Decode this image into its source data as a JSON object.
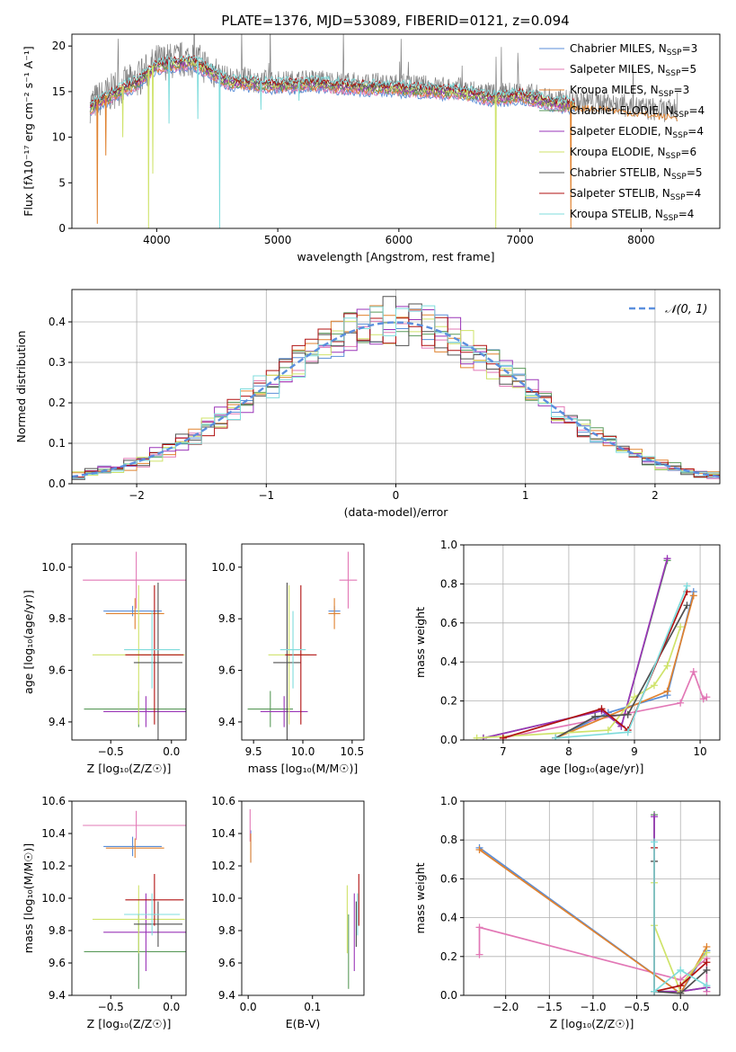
{
  "figure_title": "PLATE=1376, MJD=53089, FIBERID=0121, z=0.094",
  "series_colors": [
    "#5a8ed8",
    "#e278b6",
    "#e0822f",
    "#5a9a5a",
    "#9a35b8",
    "#cfe36a",
    "#505050",
    "#b01010",
    "#7fdcdc"
  ],
  "models": [
    {
      "name": "Chabrier MILES",
      "nssp": 3
    },
    {
      "name": "Salpeter MILES",
      "nssp": 5
    },
    {
      "name": "Kroupa MILES",
      "nssp": 3
    },
    {
      "name": "Chabrier ELODIE",
      "nssp": 4
    },
    {
      "name": "Salpeter ELODIE",
      "nssp": 4
    },
    {
      "name": "Kroupa ELODIE",
      "nssp": 6
    },
    {
      "name": "Chabrier STELIB",
      "nssp": 5
    },
    {
      "name": "Salpeter STELIB",
      "nssp": 4
    },
    {
      "name": "Kroupa STELIB",
      "nssp": 4
    }
  ],
  "chart_data": [
    {
      "id": "spectrum",
      "type": "line",
      "xlabel": "wavelength [Angstrom, rest frame]",
      "ylabel": "Flux [fλ10⁻¹⁷ erg cm⁻² s⁻¹ A⁻¹]",
      "xlim": [
        3300,
        8650
      ],
      "ylim": [
        0,
        21.3
      ],
      "xticks": [
        4000,
        5000,
        6000,
        7000,
        8000
      ],
      "yticks": [
        0,
        5,
        10,
        15,
        20
      ],
      "legend_position": "upper right",
      "data_series": {
        "name": "",
        "color": "#808080",
        "continuum": [
          [
            3450,
            13.6
          ],
          [
            3700,
            15.5
          ],
          [
            3850,
            16.4
          ],
          [
            4000,
            18.2
          ],
          [
            4300,
            18.6
          ],
          [
            4600,
            16.4
          ],
          [
            5000,
            16.0
          ],
          [
            5300,
            16.2
          ],
          [
            5600,
            15.9
          ],
          [
            6000,
            15.7
          ],
          [
            6500,
            15.3
          ],
          [
            6800,
            14.6
          ],
          [
            7000,
            14.9
          ],
          [
            7300,
            14.0
          ],
          [
            7700,
            13.8
          ],
          [
            8000,
            13.2
          ],
          [
            8300,
            12.8
          ]
        ]
      },
      "model_absorption_features": [
        [
          3510,
          0.5
        ],
        [
          3580,
          8.0
        ],
        [
          3720,
          10.0
        ],
        [
          3933,
          0.0
        ],
        [
          3968,
          6.0
        ],
        [
          4102,
          11.5
        ],
        [
          4340,
          12.0
        ],
        [
          4520,
          0.0
        ],
        [
          4861,
          13.0
        ],
        [
          5175,
          14.0
        ],
        [
          6563,
          14.0
        ],
        [
          6800,
          0.0
        ],
        [
          7420,
          0.0
        ]
      ]
    },
    {
      "id": "residuals",
      "type": "histogram",
      "xlabel": "(data-model)/error",
      "ylabel": "Normed distribution",
      "xlim": [
        -2.5,
        2.5
      ],
      "ylim": [
        0,
        0.48
      ],
      "xticks": [
        -2,
        -1,
        0,
        1,
        2
      ],
      "yticks": [
        0.0,
        0.1,
        0.2,
        0.3,
        0.4
      ],
      "grid": true,
      "legend": "𝒩(0, 1)",
      "legend_position": "upper right",
      "reference_curve": {
        "type": "gaussian",
        "mean": 0,
        "sigma": 1,
        "color": "#5b8fde"
      }
    },
    {
      "id": "z_age",
      "type": "scatter",
      "xlabel": "Z [log₁₀(Z/Z☉)]",
      "ylabel": "age  [log₁₀(age/yr)]",
      "xlim": [
        -0.82,
        0.12
      ],
      "ylim": [
        9.33,
        10.09
      ],
      "xticks": [
        -0.5,
        0.0
      ],
      "yticks": [
        9.4,
        9.6,
        9.8,
        10.0
      ],
      "points": [
        {
          "series": 0,
          "x": -0.32,
          "y": 9.83,
          "xerr": 0.24,
          "yerr": 0.02
        },
        {
          "series": 1,
          "x": -0.29,
          "y": 9.95,
          "xerr": 0.44,
          "yerr": 0.11
        },
        {
          "series": 2,
          "x": -0.3,
          "y": 9.82,
          "xerr": 0.24,
          "yerr": 0.06
        },
        {
          "series": 3,
          "x": -0.27,
          "y": 9.45,
          "xerr": 0.45,
          "yerr": 0.07
        },
        {
          "series": 4,
          "x": -0.21,
          "y": 9.44,
          "xerr": 0.35,
          "yerr": 0.06
        },
        {
          "series": 5,
          "x": -0.27,
          "y": 9.66,
          "xerr": 0.38,
          "yerr": 0.27
        },
        {
          "series": 6,
          "x": -0.11,
          "y": 9.63,
          "xerr": 0.2,
          "yerr": 0.31
        },
        {
          "series": 7,
          "x": -0.14,
          "y": 9.66,
          "xerr": 0.24,
          "yerr": 0.27
        },
        {
          "series": 8,
          "x": -0.16,
          "y": 9.68,
          "xerr": 0.23,
          "yerr": 0.15
        }
      ]
    },
    {
      "id": "mass_age",
      "type": "scatter",
      "xlabel": "mass [log₁₀(M/M☉)]",
      "ylabel": "",
      "xlim": [
        9.38,
        10.62
      ],
      "ylim": [
        9.33,
        10.09
      ],
      "xticks": [
        9.5,
        10.0,
        10.5
      ],
      "yticks": [
        9.4,
        9.6,
        9.8,
        10.0
      ],
      "points": [
        {
          "series": 0,
          "x": 10.32,
          "y": 9.83,
          "xerr": 0.06,
          "yerr": 0.02
        },
        {
          "series": 1,
          "x": 10.46,
          "y": 9.95,
          "xerr": 0.09,
          "yerr": 0.11
        },
        {
          "series": 2,
          "x": 10.32,
          "y": 9.82,
          "xerr": 0.06,
          "yerr": 0.06
        },
        {
          "series": 3,
          "x": 9.67,
          "y": 9.45,
          "xerr": 0.23,
          "yerr": 0.07
        },
        {
          "series": 4,
          "x": 9.81,
          "y": 9.44,
          "xerr": 0.24,
          "yerr": 0.06
        },
        {
          "series": 5,
          "x": 9.86,
          "y": 9.66,
          "xerr": 0.21,
          "yerr": 0.27
        },
        {
          "series": 6,
          "x": 9.84,
          "y": 9.63,
          "xerr": 0.14,
          "yerr": 0.31
        },
        {
          "series": 7,
          "x": 9.98,
          "y": 9.66,
          "xerr": 0.16,
          "yerr": 0.27
        },
        {
          "series": 8,
          "x": 9.9,
          "y": 9.68,
          "xerr": 0.13,
          "yerr": 0.15
        }
      ]
    },
    {
      "id": "age_weight",
      "type": "line",
      "xlabel": "age  [log₁₀(age/yr)]",
      "ylabel": "mass weight",
      "xlim": [
        6.4,
        10.3
      ],
      "ylim": [
        0,
        1.0
      ],
      "xticks": [
        7,
        8,
        9,
        10
      ],
      "yticks": [
        0.0,
        0.2,
        0.4,
        0.6,
        0.8,
        1.0
      ],
      "grid": true,
      "series": [
        {
          "series": 0,
          "x": [
            7.8,
            8.6,
            9.5,
            9.9
          ],
          "y": [
            0.01,
            0.14,
            0.23,
            0.76
          ]
        },
        {
          "series": 1,
          "x": [
            7.0,
            9.7,
            9.9,
            10.05,
            10.1
          ],
          "y": [
            0.01,
            0.19,
            0.35,
            0.21,
            0.22
          ]
        },
        {
          "series": 2,
          "x": [
            7.8,
            9.5,
            9.9
          ],
          "y": [
            0.01,
            0.25,
            0.74
          ]
        },
        {
          "series": 3,
          "x": [
            6.7,
            8.5,
            8.8,
            9.5
          ],
          "y": [
            0.01,
            0.15,
            0.07,
            0.92
          ]
        },
        {
          "series": 4,
          "x": [
            6.7,
            8.5,
            8.8,
            9.5
          ],
          "y": [
            0.01,
            0.15,
            0.07,
            0.93
          ]
        },
        {
          "series": 5,
          "x": [
            6.6,
            8.6,
            9.0,
            9.3,
            9.5,
            9.7
          ],
          "y": [
            0.01,
            0.05,
            0.22,
            0.28,
            0.38,
            0.58
          ]
        },
        {
          "series": 6,
          "x": [
            7.8,
            8.4,
            8.9,
            9.8
          ],
          "y": [
            0.01,
            0.12,
            0.13,
            0.69
          ]
        },
        {
          "series": 7,
          "x": [
            7.0,
            8.5,
            8.9,
            9.8
          ],
          "y": [
            0.01,
            0.16,
            0.05,
            0.76
          ]
        },
        {
          "series": 8,
          "x": [
            7.8,
            8.9,
            9.8
          ],
          "y": [
            0.01,
            0.04,
            0.79
          ]
        }
      ]
    },
    {
      "id": "z_mass",
      "type": "scatter",
      "xlabel": "Z [log₁₀(Z/Z☉)]",
      "ylabel": "mass [log₁₀(M/M☉)]",
      "xlim": [
        -0.82,
        0.12
      ],
      "ylim": [
        9.4,
        10.6
      ],
      "xticks": [
        -0.5,
        0.0
      ],
      "yticks": [
        9.4,
        9.6,
        9.8,
        10.0,
        10.2,
        10.4,
        10.6
      ],
      "points": [
        {
          "series": 0,
          "x": -0.32,
          "y": 10.32,
          "xerr": 0.24,
          "yerr": 0.06
        },
        {
          "series": 1,
          "x": -0.29,
          "y": 10.45,
          "xerr": 0.44,
          "yerr": 0.09
        },
        {
          "series": 2,
          "x": -0.3,
          "y": 10.31,
          "xerr": 0.24,
          "yerr": 0.06
        },
        {
          "series": 3,
          "x": -0.27,
          "y": 9.67,
          "xerr": 0.45,
          "yerr": 0.23
        },
        {
          "series": 4,
          "x": -0.21,
          "y": 9.79,
          "xerr": 0.35,
          "yerr": 0.24
        },
        {
          "series": 5,
          "x": -0.27,
          "y": 9.87,
          "xerr": 0.38,
          "yerr": 0.21
        },
        {
          "series": 6,
          "x": -0.11,
          "y": 9.84,
          "xerr": 0.2,
          "yerr": 0.14
        },
        {
          "series": 7,
          "x": -0.14,
          "y": 9.99,
          "xerr": 0.24,
          "yerr": 0.16
        },
        {
          "series": 8,
          "x": -0.16,
          "y": 9.9,
          "xerr": 0.23,
          "yerr": 0.13
        }
      ]
    },
    {
      "id": "ebv_mass",
      "type": "scatter",
      "xlabel": "E(B-V)",
      "ylabel": "",
      "xlim": [
        -0.01,
        0.18
      ],
      "ylim": [
        9.4,
        10.6
      ],
      "xticks": [
        0.0,
        0.1
      ],
      "yticks": [
        9.4,
        9.6,
        9.8,
        10.0,
        10.2,
        10.4,
        10.6
      ],
      "points": [
        {
          "series": 0,
          "x": 0.004,
          "y": 10.32,
          "yerr": 0.1
        },
        {
          "series": 1,
          "x": 0.003,
          "y": 10.45,
          "yerr": 0.1
        },
        {
          "series": 2,
          "x": 0.004,
          "y": 10.31,
          "yerr": 0.09
        },
        {
          "series": 3,
          "x": 0.156,
          "y": 9.67,
          "yerr": 0.23
        },
        {
          "series": 4,
          "x": 0.165,
          "y": 9.79,
          "yerr": 0.24
        },
        {
          "series": 5,
          "x": 0.154,
          "y": 9.87,
          "yerr": 0.21
        },
        {
          "series": 6,
          "x": 0.168,
          "y": 9.84,
          "yerr": 0.14
        },
        {
          "series": 7,
          "x": 0.172,
          "y": 9.99,
          "yerr": 0.16
        },
        {
          "series": 8,
          "x": 0.17,
          "y": 9.9,
          "yerr": 0.13
        }
      ]
    },
    {
      "id": "z_weight",
      "type": "line",
      "xlabel": "Z [log₁₀(Z/Z☉)]",
      "ylabel": "mass weight",
      "xlim": [
        -2.48,
        0.45
      ],
      "ylim": [
        0,
        1.0
      ],
      "xticks": [
        -2.0,
        -1.5,
        -1.0,
        -0.5,
        0.0
      ],
      "yticks": [
        0.0,
        0.2,
        0.4,
        0.6,
        0.8,
        1.0
      ],
      "grid": true,
      "series": [
        {
          "series": 0,
          "x": [
            -2.3,
            0.0,
            0.3
          ],
          "y": [
            0.76,
            0.01,
            0.23
          ]
        },
        {
          "series": 1,
          "x": [
            -2.3,
            -2.3,
            0.0,
            0.3,
            0.3
          ],
          "y": [
            0.21,
            0.35,
            0.08,
            0.19,
            0.02
          ]
        },
        {
          "series": 2,
          "x": [
            -2.3,
            0.0,
            0.3
          ],
          "y": [
            0.75,
            0.01,
            0.25
          ]
        },
        {
          "series": 3,
          "x": [
            -0.3,
            -0.3,
            0.0,
            0.3
          ],
          "y": [
            0.93,
            0.02,
            0.02,
            0.04
          ]
        },
        {
          "series": 4,
          "x": [
            -0.3,
            -0.3,
            0.0,
            0.3
          ],
          "y": [
            0.92,
            0.02,
            0.02,
            0.04
          ]
        },
        {
          "series": 5,
          "x": [
            -0.3,
            -0.3,
            0.0,
            0.0,
            0.3
          ],
          "y": [
            0.58,
            0.36,
            0.02,
            0.05,
            0.22
          ]
        },
        {
          "series": 6,
          "x": [
            -0.3,
            -0.3,
            0.0,
            0.3
          ],
          "y": [
            0.69,
            0.02,
            0.01,
            0.13
          ]
        },
        {
          "series": 7,
          "x": [
            -0.3,
            -0.3,
            0.0,
            0.3
          ],
          "y": [
            0.76,
            0.02,
            0.05,
            0.17
          ]
        },
        {
          "series": 8,
          "x": [
            -0.3,
            -0.3,
            0.0,
            0.3
          ],
          "y": [
            0.79,
            0.02,
            0.13,
            0.05
          ]
        }
      ]
    }
  ]
}
